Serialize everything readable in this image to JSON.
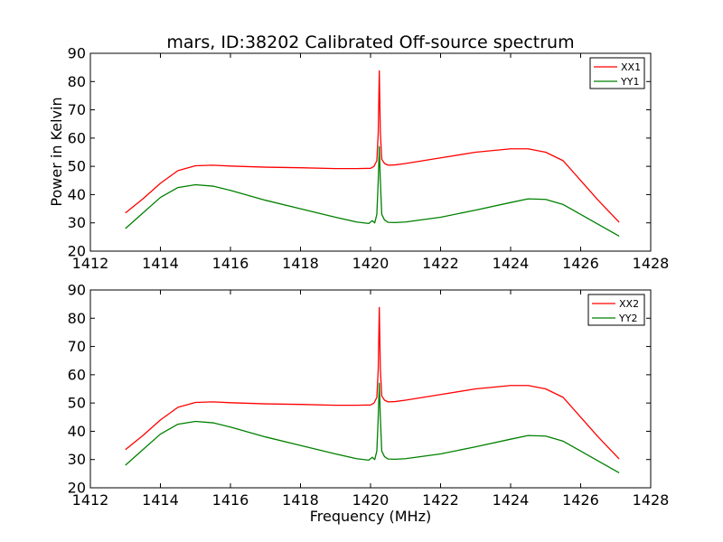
{
  "chart_data": [
    {
      "type": "line",
      "title": "mars, ID:38202 Calibrated Off-source spectrum",
      "xlabel": "",
      "ylabel": "Power in Kelvin",
      "xlim": [
        1412,
        1428
      ],
      "ylim": [
        20,
        90
      ],
      "xticks": [
        "1412",
        "1414",
        "1416",
        "1418",
        "1420",
        "1422",
        "1424",
        "1426",
        "1428"
      ],
      "yticks": [
        "20",
        "30",
        "40",
        "50",
        "60",
        "70",
        "80",
        "90"
      ],
      "legend": "top-right",
      "grid": false,
      "series": [
        {
          "name": "XX1",
          "color": "#ff0000",
          "x": [
            1413.0,
            1413.5,
            1414.0,
            1414.5,
            1415.0,
            1415.5,
            1416.0,
            1417.0,
            1418.0,
            1419.0,
            1419.6,
            1420.0,
            1420.1,
            1420.18,
            1420.22,
            1420.25,
            1420.28,
            1420.32,
            1420.4,
            1420.5,
            1420.7,
            1421.0,
            1422.0,
            1423.0,
            1424.0,
            1424.5,
            1425.0,
            1425.5,
            1426.0,
            1426.5,
            1427.1
          ],
          "y": [
            33.5,
            38.5,
            44.0,
            48.5,
            50.2,
            50.4,
            50.1,
            49.7,
            49.5,
            49.2,
            49.2,
            49.3,
            50.0,
            52.0,
            62.0,
            83.8,
            62.0,
            52.5,
            51.0,
            50.4,
            50.5,
            51.0,
            53.0,
            55.0,
            56.2,
            56.2,
            55.0,
            52.0,
            45.0,
            38.0,
            30.2
          ]
        },
        {
          "name": "YY1",
          "color": "#008000",
          "x": [
            1413.0,
            1413.5,
            1414.0,
            1414.5,
            1415.0,
            1415.5,
            1416.0,
            1417.0,
            1418.0,
            1419.0,
            1419.6,
            1419.95,
            1420.05,
            1420.12,
            1420.18,
            1420.22,
            1420.25,
            1420.28,
            1420.32,
            1420.4,
            1420.5,
            1420.7,
            1421.0,
            1422.0,
            1423.0,
            1424.0,
            1424.5,
            1425.0,
            1425.5,
            1426.0,
            1426.5,
            1427.1
          ],
          "y": [
            28.0,
            33.5,
            39.0,
            42.5,
            43.5,
            43.0,
            41.5,
            38.0,
            35.0,
            32.0,
            30.3,
            29.8,
            30.8,
            30.0,
            33.0,
            45.0,
            57.0,
            45.0,
            33.0,
            31.0,
            30.2,
            30.1,
            30.3,
            32.0,
            34.5,
            37.2,
            38.5,
            38.3,
            36.5,
            33.0,
            29.5,
            25.3
          ]
        }
      ]
    },
    {
      "type": "line",
      "title": "",
      "xlabel": "Frequency (MHz)",
      "ylabel": "",
      "xlim": [
        1412,
        1428
      ],
      "ylim": [
        20,
        90
      ],
      "xticks": [
        "1412",
        "1414",
        "1416",
        "1418",
        "1420",
        "1422",
        "1424",
        "1426",
        "1428"
      ],
      "yticks": [
        "20",
        "30",
        "40",
        "50",
        "60",
        "70",
        "80",
        "90"
      ],
      "legend": "top-right",
      "grid": false,
      "series": [
        {
          "name": "XX2",
          "color": "#ff0000",
          "x": [
            1413.0,
            1413.5,
            1414.0,
            1414.5,
            1415.0,
            1415.5,
            1416.0,
            1417.0,
            1418.0,
            1419.0,
            1419.6,
            1420.0,
            1420.1,
            1420.18,
            1420.22,
            1420.25,
            1420.28,
            1420.32,
            1420.4,
            1420.5,
            1420.7,
            1421.0,
            1422.0,
            1423.0,
            1424.0,
            1424.5,
            1425.0,
            1425.5,
            1426.0,
            1426.5,
            1427.1
          ],
          "y": [
            33.5,
            38.5,
            44.0,
            48.5,
            50.2,
            50.4,
            50.1,
            49.7,
            49.5,
            49.2,
            49.2,
            49.3,
            50.0,
            52.0,
            62.0,
            83.8,
            62.0,
            52.5,
            51.0,
            50.4,
            50.5,
            51.0,
            53.0,
            55.0,
            56.2,
            56.2,
            55.0,
            52.0,
            45.0,
            38.0,
            30.2
          ]
        },
        {
          "name": "YY2",
          "color": "#008000",
          "x": [
            1413.0,
            1413.5,
            1414.0,
            1414.5,
            1415.0,
            1415.5,
            1416.0,
            1417.0,
            1418.0,
            1419.0,
            1419.6,
            1419.95,
            1420.05,
            1420.12,
            1420.18,
            1420.22,
            1420.25,
            1420.28,
            1420.32,
            1420.4,
            1420.5,
            1420.7,
            1421.0,
            1422.0,
            1423.0,
            1424.0,
            1424.5,
            1425.0,
            1425.5,
            1426.0,
            1426.5,
            1427.1
          ],
          "y": [
            28.0,
            33.5,
            39.0,
            42.5,
            43.5,
            43.0,
            41.5,
            38.0,
            35.0,
            32.0,
            30.3,
            29.8,
            30.8,
            30.0,
            33.0,
            45.0,
            57.0,
            45.0,
            33.0,
            31.0,
            30.2,
            30.1,
            30.3,
            32.0,
            34.5,
            37.2,
            38.5,
            38.3,
            36.5,
            33.0,
            29.5,
            25.3
          ]
        }
      ]
    }
  ]
}
